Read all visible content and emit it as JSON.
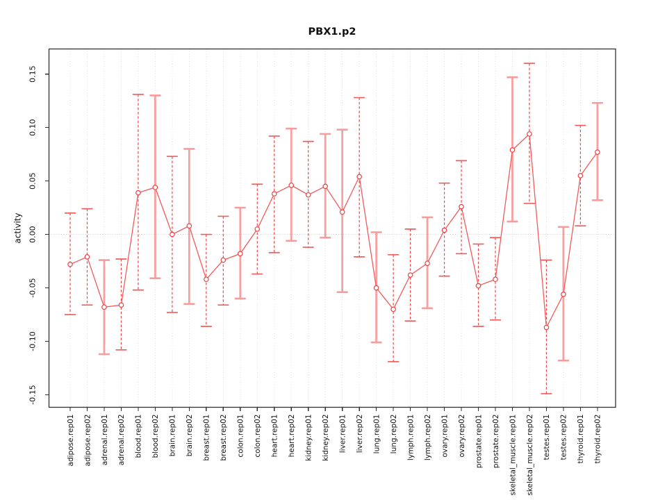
{
  "page": {
    "background": "#ffffff"
  },
  "chart_data": {
    "type": "line",
    "title": "PBX1.p2",
    "ylabel": "activity",
    "xlabel": "",
    "legend": "none",
    "grid": {
      "vertical_dotted_per_category": true,
      "horizontal_zero_line": true
    },
    "ylim": [
      -0.1617,
      0.1735
    ],
    "ytick_values": [
      0.15,
      0.1,
      0.05,
      0.0,
      -0.05,
      -0.1,
      -0.15
    ],
    "ytick_labels": [
      "0.15",
      "0.10",
      "0.05",
      "0.00",
      "-0.05",
      "-0.10",
      "-0.15"
    ],
    "categories": [
      "adipose.rep01",
      "adipose.rep02",
      "adrenal.rep01",
      "adrenal.rep02",
      "blood.rep01",
      "blood.rep02",
      "brain.rep01",
      "brain.rep02",
      "breast.rep01",
      "breast.rep02",
      "colon.rep01",
      "colon.rep02",
      "heart.rep01",
      "heart.rep02",
      "kidney.rep01",
      "kidney.rep02",
      "liver.rep01",
      "liver.rep02",
      "lung.rep01",
      "lung.rep02",
      "lymph.rep01",
      "lymph.rep02",
      "ovary.rep01",
      "ovary.rep02",
      "prostate.rep01",
      "prostate.rep02",
      "skeletal_muscle.rep01",
      "skeletal_muscle.rep02",
      "testes.rep01",
      "testes.rep02",
      "thyroid.rep01",
      "thyroid.rep02"
    ],
    "series": [
      {
        "name": "activity",
        "values": [
          -0.028,
          -0.021,
          -0.068,
          -0.066,
          0.039,
          0.044,
          0.0,
          0.008,
          -0.042,
          -0.024,
          -0.018,
          0.005,
          0.038,
          0.046,
          0.037,
          0.045,
          0.021,
          0.054,
          -0.05,
          -0.07,
          -0.038,
          -0.027,
          0.004,
          0.026,
          -0.048,
          -0.042,
          0.079,
          0.094,
          -0.087,
          -0.056,
          0.055,
          0.077
        ],
        "lower": [
          -0.075,
          -0.066,
          -0.112,
          -0.108,
          -0.052,
          -0.041,
          -0.073,
          -0.065,
          -0.086,
          -0.066,
          -0.06,
          -0.037,
          -0.017,
          -0.006,
          -0.012,
          -0.003,
          -0.054,
          -0.021,
          -0.101,
          -0.119,
          -0.081,
          -0.069,
          -0.039,
          -0.018,
          -0.086,
          -0.08,
          0.012,
          0.029,
          -0.149,
          -0.118,
          0.008,
          0.032
        ],
        "upper": [
          0.02,
          0.024,
          -0.024,
          -0.023,
          0.131,
          0.13,
          0.073,
          0.08,
          0.0,
          0.017,
          0.025,
          0.047,
          0.092,
          0.099,
          0.087,
          0.094,
          0.098,
          0.128,
          0.002,
          -0.019,
          0.005,
          0.016,
          0.048,
          0.069,
          -0.009,
          -0.003,
          0.147,
          0.16,
          -0.024,
          0.007,
          0.102,
          0.123
        ],
        "bar_styles": [
          "dashed",
          "dashed",
          "solid",
          "dashed",
          "dashed",
          "solid",
          "dashed",
          "solid",
          "dashed",
          "dashed",
          "solid",
          "dashed",
          "dashed",
          "solid",
          "dashed",
          "solid",
          "solid",
          "dashed",
          "solid",
          "dashed",
          "dashed",
          "solid",
          "dashed",
          "dashed",
          "dashed",
          "dashed",
          "solid",
          "dashed",
          "dashed",
          "solid",
          "dashed",
          "solid"
        ]
      }
    ],
    "colors": {
      "axis": "#303030",
      "grid": "#dcdcdc",
      "zero_grid": "#c9c9c9",
      "line": "#f15a5a",
      "point": "#ea4242",
      "bar_solid": "#f8a0a0",
      "bar_dashed": "#ee4646",
      "cap_solid": "#f59c9c",
      "cap_dashed": "#ef5c5c"
    }
  }
}
